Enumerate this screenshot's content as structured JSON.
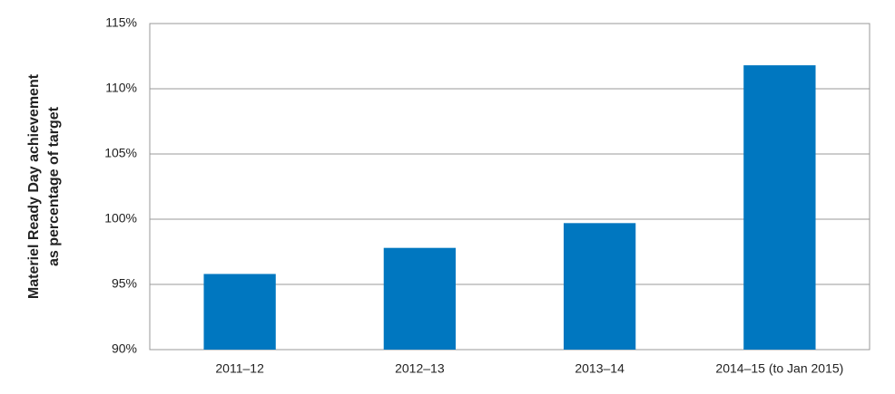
{
  "chart_data": {
    "type": "bar",
    "y_label": [
      "Materiel Ready Day achievement",
      "as percentage of target"
    ],
    "categories": [
      "2011–12",
      "2012–13",
      "2013–14",
      "2014–15 (to Jan 2015)"
    ],
    "values": [
      95.8,
      97.8,
      99.7,
      111.8
    ],
    "color": "#0077c0",
    "ylim": [
      90,
      115
    ],
    "yticks": [
      {
        "value": 90,
        "label": "90%"
      },
      {
        "value": 95,
        "label": "95%"
      },
      {
        "value": 100,
        "label": "100%"
      },
      {
        "value": 105,
        "label": "105%"
      },
      {
        "value": 110,
        "label": "110%"
      },
      {
        "value": 115,
        "label": "115%"
      }
    ],
    "grid": true
  }
}
